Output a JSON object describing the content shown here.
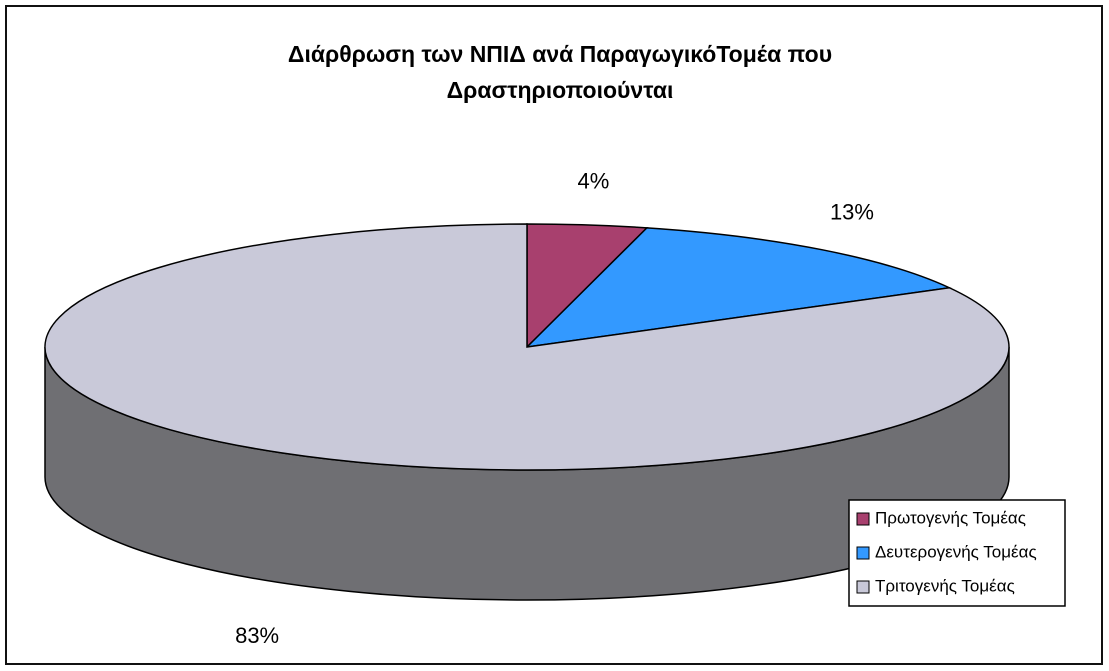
{
  "chart_data": {
    "type": "pie3d",
    "title": "Διάρθρωση των ΝΠΙΔ ανά ΠαραγωγικόΤομέα που Δραστηριοποιούνται",
    "categories": [
      "Πρωτογενής Τομέας",
      "Δευτερογενής Τομέας",
      "Τριτογενής Τομέας"
    ],
    "values": [
      4,
      13,
      83
    ],
    "value_labels": [
      "4%",
      "13%",
      "83%"
    ],
    "colors": [
      "#a8406e",
      "#3399ff",
      "#c9c9d9"
    ],
    "legend": "right"
  }
}
